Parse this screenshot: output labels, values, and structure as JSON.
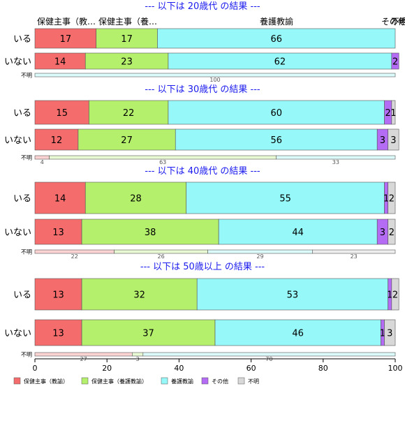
{
  "chart_data": {
    "type": "bar",
    "orientation": "horizontal",
    "stacked": true,
    "xlim": [
      0,
      100
    ],
    "x_ticks": [
      "0",
      "20",
      "40",
      "60",
      "80",
      "100"
    ],
    "top_column_labels": [
      "保健主事（教…",
      "保健主事（養…",
      "養護教諭",
      "その他",
      "不明"
    ],
    "series": [
      {
        "name": "保健主事（教諭）",
        "color": "#f56c6c"
      },
      {
        "name": "保健主事（養護教諭）",
        "color": "#b4f06c"
      },
      {
        "name": "養護教諭",
        "color": "#96f8f8"
      },
      {
        "name": "その他",
        "color": "#b46cf5"
      },
      {
        "name": "不明",
        "color": "#d8d8d8"
      }
    ],
    "groups": [
      {
        "title": "--- 以下は 20歳代 の結果 ---",
        "rows": [
          {
            "label": "いる",
            "values": [
              17,
              17,
              66,
              0,
              0
            ]
          },
          {
            "label": "いない",
            "values": [
              14,
              23,
              62,
              2,
              0
            ]
          },
          {
            "label": "不明",
            "values": [
              0,
              0,
              100,
              0,
              0
            ]
          }
        ]
      },
      {
        "title": "--- 以下は 30歳代 の結果 ---",
        "rows": [
          {
            "label": "いる",
            "values": [
              15,
              22,
              60,
              2,
              1
            ]
          },
          {
            "label": "いない",
            "values": [
              12,
              27,
              56,
              3,
              3
            ]
          },
          {
            "label": "不明",
            "values": [
              4,
              63,
              33,
              0,
              0
            ]
          }
        ]
      },
      {
        "title": "--- 以下は 40歳代 の結果 ---",
        "rows": [
          {
            "label": "いる",
            "values": [
              14,
              28,
              55,
              1,
              2
            ]
          },
          {
            "label": "いない",
            "values": [
              13,
              38,
              44,
              3,
              2
            ]
          },
          {
            "label": "不明",
            "values": [
              22,
              26,
              29,
              0,
              23
            ]
          }
        ]
      },
      {
        "title": "--- 以下は 50歳以上 の結果 ---",
        "rows": [
          {
            "label": "いる",
            "values": [
              13,
              32,
              53,
              1,
              2
            ]
          },
          {
            "label": "いない",
            "values": [
              13,
              37,
              46,
              1,
              3
            ]
          },
          {
            "label": "不明",
            "values": [
              27,
              3,
              70,
              0,
              0
            ]
          }
        ]
      }
    ]
  }
}
